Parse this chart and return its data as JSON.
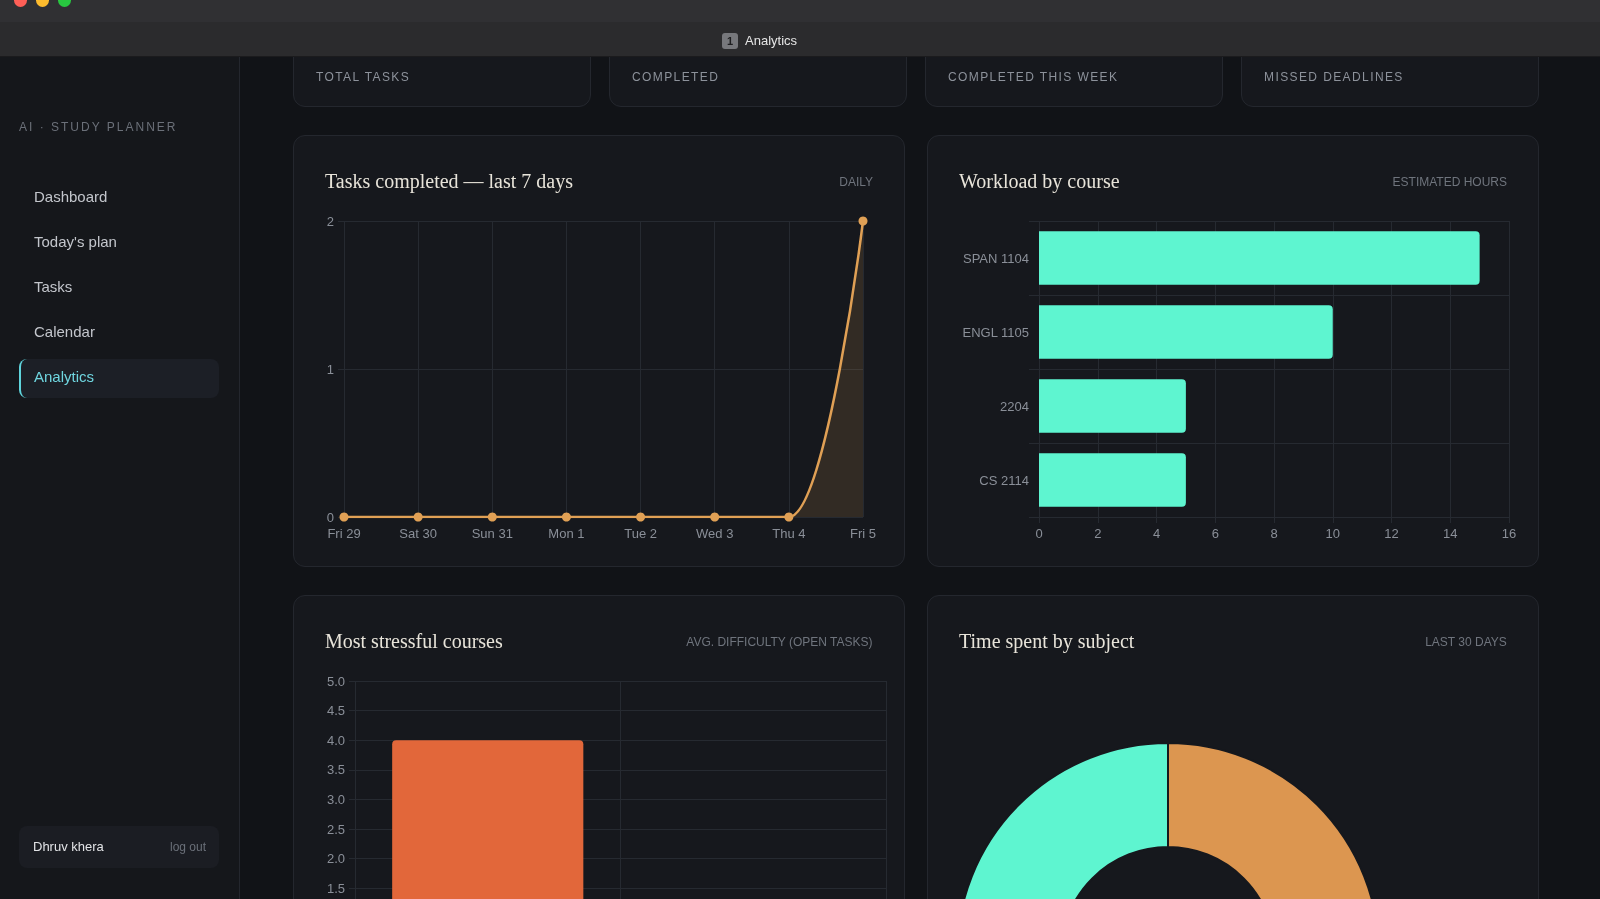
{
  "chart_data": [
    {
      "type": "other",
      "annotations": [
        "1",
        "Analytics"
      ]
    },
    {
      "type": "other",
      "subtitle": "AI · STUDY PLANNER",
      "annotations": [
        "Dashboard",
        "Today's plan",
        "Tasks",
        "Calendar",
        "Analytics",
        "Dhruv khera",
        "log out"
      ]
    },
    {
      "type": "other",
      "title": "TOTAL TASKS"
    },
    {
      "type": "other",
      "title": "COMPLETED"
    },
    {
      "type": "other",
      "title": "COMPLETED THIS WEEK"
    },
    {
      "type": "other",
      "title": "MISSED DEADLINES"
    },
    {
      "type": "area",
      "title": "Tasks completed — last 7 days",
      "subtitle": "DAILY",
      "categories": [
        "Fri 29",
        "Sat 30",
        "Sun 31",
        "Mon 1",
        "Tue 2",
        "Wed 3",
        "Thu 4",
        "Fri 5"
      ],
      "values": [
        0,
        0,
        0,
        0,
        0,
        0,
        0,
        2
      ],
      "color": "#e0a055",
      "ylim": [
        0,
        2
      ],
      "yticks": [
        0,
        1,
        2
      ],
      "grid": true,
      "marker": "circle"
    },
    {
      "type": "bar",
      "orientation": "horizontal",
      "title": "Workload by course",
      "subtitle": "ESTIMATED HOURS",
      "categories": [
        "SPAN 1104",
        "ENGL 1105",
        "2204",
        "CS 2114"
      ],
      "values": [
        15,
        10,
        5,
        5
      ],
      "color": "#5ef5d0",
      "xlim": [
        0,
        16
      ],
      "xticks": [
        0,
        2,
        4,
        6,
        8,
        10,
        12,
        14,
        16
      ],
      "grid": true
    },
    {
      "type": "bar",
      "title": "Most stressful courses",
      "subtitle": "AVG. DIFFICULTY (OPEN TASKS)",
      "categories": [
        null,
        null
      ],
      "values": [
        4,
        null
      ],
      "color": "#e2673a",
      "ylim": [
        0,
        5
      ],
      "yticks": [
        {
          "value": 1.5,
          "label": "1.5"
        },
        {
          "value": 2,
          "label": "2.0"
        },
        {
          "value": 2.5,
          "label": "2.5"
        },
        {
          "value": 3,
          "label": "3.0"
        },
        {
          "value": 3.5,
          "label": "3.5"
        },
        {
          "value": 4,
          "label": "4.0"
        },
        {
          "value": 4.5,
          "label": "4.5"
        },
        {
          "value": 5,
          "label": "5.0"
        }
      ],
      "grid": true
    },
    {
      "type": "donut",
      "title": "Time spent by subject",
      "subtitle": "LAST 30 DAYS",
      "categories": [
        null,
        null
      ],
      "values": [
        50,
        50
      ],
      "colors": [
        "#dc9650",
        "#5ef5d0"
      ]
    }
  ]
}
